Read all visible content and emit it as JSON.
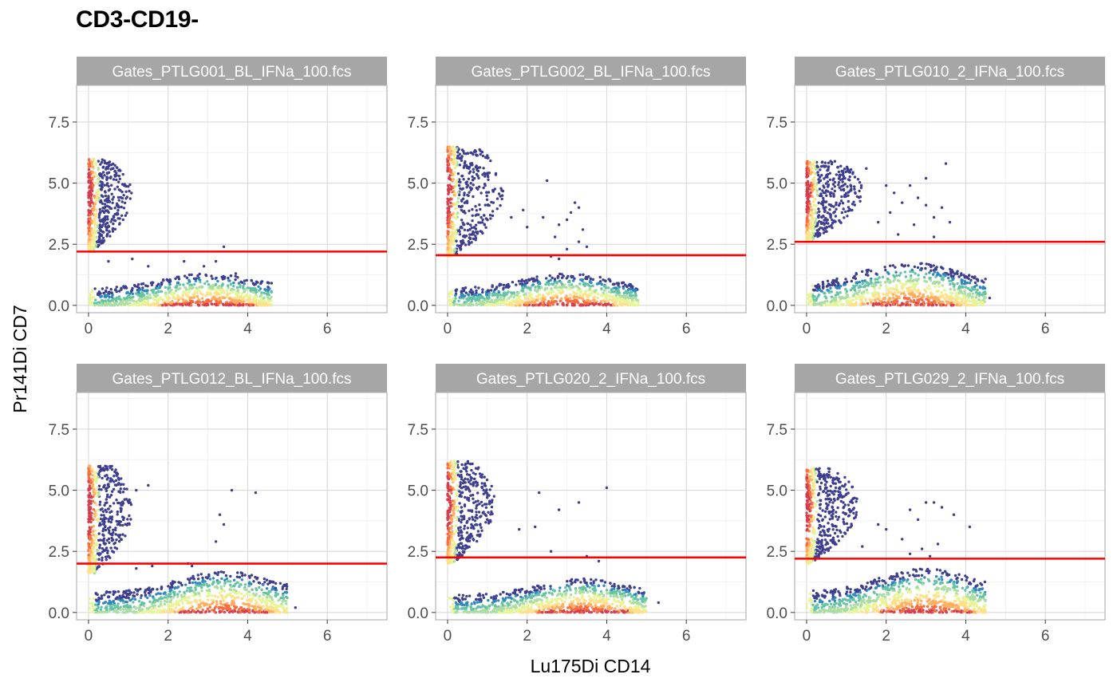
{
  "title": "CD3-CD19-",
  "chart_data": {
    "type": "scatter",
    "subtype": "hexbin-density",
    "title": "CD3-CD19-",
    "xlabel": "Lu175Di CD14",
    "ylabel": "Pr141Di CD7",
    "xlim": [
      -0.3,
      7.5
    ],
    "ylim": [
      -0.3,
      9.0
    ],
    "x_ticks": [
      "0",
      "2",
      "4",
      "6"
    ],
    "y_ticks": [
      "0.0",
      "2.5",
      "5.0",
      "7.5"
    ],
    "grid": true,
    "threshold_color": "#ff0000",
    "point_color": "#3f3f8f",
    "density_palette": [
      "#5e4fa2",
      "#3288bd",
      "#66c2a5",
      "#abdda4",
      "#e6f598",
      "#fee08b",
      "#fdae61",
      "#f46d43",
      "#d53e4f"
    ],
    "panels": [
      {
        "name": "Gates_PTLG001_BL_IFNa_100.fcs",
        "threshold_y": 2.2,
        "upper_cluster": {
          "x_max": 1.1,
          "y_min": 2.2,
          "y_max": 6.0
        },
        "lower_cluster": {
          "x_max": 4.6,
          "y_max": 1.3,
          "peak_x": 3.0
        },
        "scattered_points": [
          [
            0.5,
            1.8
          ],
          [
            1.1,
            1.9
          ],
          [
            1.5,
            1.6
          ],
          [
            2.4,
            1.8
          ],
          [
            3.4,
            2.4
          ],
          [
            3.2,
            1.8
          ],
          [
            2.9,
            1.6
          ],
          [
            3.7,
            1.3
          ]
        ]
      },
      {
        "name": "Gates_PTLG002_BL_IFNa_100.fcs",
        "threshold_y": 2.05,
        "upper_cluster": {
          "x_max": 1.4,
          "y_min": 2.0,
          "y_max": 6.5
        },
        "lower_cluster": {
          "x_max": 4.8,
          "y_max": 1.3,
          "peak_x": 3.0
        },
        "scattered_points": [
          [
            1.6,
            3.6
          ],
          [
            1.9,
            3.9
          ],
          [
            2.0,
            3.2
          ],
          [
            2.4,
            3.6
          ],
          [
            2.5,
            5.1
          ],
          [
            2.7,
            2.8
          ],
          [
            2.8,
            3.3
          ],
          [
            3.0,
            3.5
          ],
          [
            3.1,
            3.8
          ],
          [
            3.3,
            4.0
          ],
          [
            3.4,
            3.1
          ],
          [
            3.3,
            2.6
          ],
          [
            3.0,
            2.3
          ],
          [
            3.2,
            4.2
          ],
          [
            3.5,
            2.4
          ],
          [
            2.6,
            2.0
          ],
          [
            2.8,
            1.9
          ]
        ]
      },
      {
        "name": "Gates_PTLG010_2_IFNa_100.fcs",
        "threshold_y": 2.6,
        "upper_cluster": {
          "x_max": 1.4,
          "y_min": 2.6,
          "y_max": 5.9
        },
        "lower_cluster": {
          "x_max": 4.5,
          "y_max": 1.8,
          "peak_x": 2.6
        },
        "scattered_points": [
          [
            1.5,
            5.6
          ],
          [
            2.0,
            4.9
          ],
          [
            2.2,
            4.6
          ],
          [
            2.4,
            4.2
          ],
          [
            2.6,
            4.9
          ],
          [
            2.8,
            4.4
          ],
          [
            3.0,
            4.1
          ],
          [
            3.2,
            3.6
          ],
          [
            3.0,
            5.2
          ],
          [
            3.5,
            5.8
          ],
          [
            3.4,
            4.0
          ],
          [
            2.1,
            3.8
          ],
          [
            1.8,
            3.4
          ],
          [
            2.7,
            3.3
          ],
          [
            3.6,
            3.4
          ],
          [
            2.3,
            2.9
          ],
          [
            3.2,
            2.8
          ],
          [
            4.6,
            0.3
          ]
        ]
      },
      {
        "name": "Gates_PTLG012_BL_IFNa_100.fcs",
        "threshold_y": 2.0,
        "upper_cluster": {
          "x_max": 1.1,
          "y_min": 1.6,
          "y_max": 6.0
        },
        "lower_cluster": {
          "x_max": 5.0,
          "y_max": 1.7,
          "peak_x": 3.4
        },
        "scattered_points": [
          [
            1.5,
            5.2
          ],
          [
            1.2,
            5.0
          ],
          [
            3.6,
            5.0
          ],
          [
            4.2,
            4.9
          ],
          [
            3.3,
            4.0
          ],
          [
            3.4,
            3.6
          ],
          [
            3.2,
            2.9
          ],
          [
            2.5,
            2.0
          ],
          [
            2.6,
            1.9
          ],
          [
            1.2,
            1.8
          ],
          [
            1.6,
            1.9
          ],
          [
            5.2,
            0.2
          ]
        ]
      },
      {
        "name": "Gates_PTLG020_2_IFNa_100.fcs",
        "threshold_y": 2.25,
        "upper_cluster": {
          "x_max": 1.2,
          "y_min": 2.0,
          "y_max": 6.2
        },
        "lower_cluster": {
          "x_max": 5.0,
          "y_max": 1.4,
          "peak_x": 3.4
        },
        "scattered_points": [
          [
            2.3,
            4.9
          ],
          [
            2.8,
            4.2
          ],
          [
            3.3,
            4.5
          ],
          [
            4.0,
            5.1
          ],
          [
            2.2,
            3.5
          ],
          [
            1.8,
            3.4
          ],
          [
            2.6,
            2.5
          ],
          [
            3.5,
            2.3
          ],
          [
            3.8,
            2.1
          ],
          [
            5.3,
            0.4
          ]
        ]
      },
      {
        "name": "Gates_PTLG029_2_IFNa_100.fcs",
        "threshold_y": 2.2,
        "upper_cluster": {
          "x_max": 1.3,
          "y_min": 2.0,
          "y_max": 5.9
        },
        "lower_cluster": {
          "x_max": 4.5,
          "y_max": 1.8,
          "peak_x": 3.0
        },
        "scattered_points": [
          [
            1.8,
            3.6
          ],
          [
            2.0,
            3.4
          ],
          [
            2.6,
            4.2
          ],
          [
            2.8,
            3.8
          ],
          [
            3.0,
            4.5
          ],
          [
            3.2,
            4.5
          ],
          [
            3.4,
            4.3
          ],
          [
            3.7,
            4.0
          ],
          [
            4.1,
            3.5
          ],
          [
            2.4,
            3.0
          ],
          [
            2.9,
            2.6
          ],
          [
            3.3,
            2.8
          ],
          [
            2.6,
            2.4
          ],
          [
            3.1,
            2.3
          ],
          [
            1.4,
            2.7
          ]
        ]
      }
    ]
  }
}
